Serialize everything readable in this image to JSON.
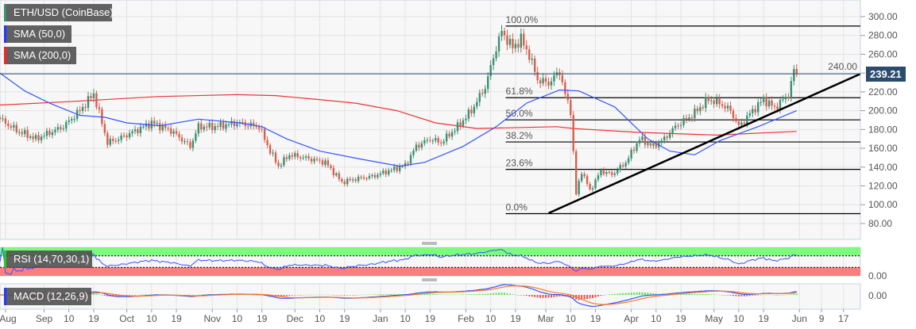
{
  "legend": {
    "instrument": {
      "label": "ETH/USD (CoinBase)",
      "color": "#3b8f72"
    },
    "sma50": {
      "label": "SMA (50,0)",
      "color": "#1f3cff"
    },
    "sma200": {
      "label": "SMA (200,0)",
      "color": "#ff2020"
    },
    "rsi": {
      "label": "RSI (14,70,30,1)",
      "color": "#22cc22"
    },
    "macd": {
      "label": "MACD (12,26,9)",
      "color": "#1f3cff"
    }
  },
  "last_price": "239.21",
  "colors": {
    "up": "#3b8f72",
    "down": "#d6604d",
    "sma50": "#3355ff",
    "sma200": "#ee3333",
    "price_line": "#2b4b6f",
    "rsi_overbought": "#7dfb7d",
    "rsi_oversold": "#fb7d7d"
  },
  "chart_data": {
    "type": "candlestick",
    "symbol": "ETH/USD",
    "ylim": [
      70,
      310
    ],
    "yticks": [
      "80.00",
      "100.00",
      "120.00",
      "140.00",
      "160.00",
      "180.00",
      "200.00",
      "220.00",
      "240.00",
      "260.00",
      "280.00",
      "300.00"
    ],
    "xticks": [
      {
        "label": "Aug",
        "date": "2019-08-18"
      },
      {
        "label": "Sep",
        "date": "2019-09-01"
      },
      {
        "label": "10",
        "date": "2019-09-10"
      },
      {
        "label": "19",
        "date": "2019-09-19"
      },
      {
        "label": "Oct",
        "date": "2019-10-01"
      },
      {
        "label": "10",
        "date": "2019-10-10"
      },
      {
        "label": "19",
        "date": "2019-10-19"
      },
      {
        "label": "Nov",
        "date": "2019-11-01"
      },
      {
        "label": "10",
        "date": "2019-11-10"
      },
      {
        "label": "19",
        "date": "2019-11-19"
      },
      {
        "label": "Dec",
        "date": "2019-12-01"
      },
      {
        "label": "10",
        "date": "2019-12-10"
      },
      {
        "label": "19",
        "date": "2019-12-19"
      },
      {
        "label": "Jan",
        "date": "2020-01-01"
      },
      {
        "label": "10",
        "date": "2020-01-10"
      },
      {
        "label": "19",
        "date": "2020-01-19"
      },
      {
        "label": "Feb",
        "date": "2020-02-01"
      },
      {
        "label": "10",
        "date": "2020-02-10"
      },
      {
        "label": "19",
        "date": "2020-02-19"
      },
      {
        "label": "Mar",
        "date": "2020-03-01"
      },
      {
        "label": "10",
        "date": "2020-03-10"
      },
      {
        "label": "19",
        "date": "2020-03-19"
      },
      {
        "label": "Apr",
        "date": "2020-04-01"
      },
      {
        "label": "10",
        "date": "2020-04-10"
      },
      {
        "label": "19",
        "date": "2020-04-19"
      },
      {
        "label": "May",
        "date": "2020-05-01"
      },
      {
        "label": "10",
        "date": "2020-05-10"
      },
      {
        "label": "19",
        "date": "2020-05-19"
      },
      {
        "label": "Jun",
        "date": "2020-06-01"
      },
      {
        "label": "9",
        "date": "2020-06-09"
      },
      {
        "label": "17",
        "date": "2020-06-17"
      }
    ],
    "closes": [
      [
        "2019-08-16",
        191
      ],
      [
        "2019-08-22",
        179
      ],
      [
        "2019-08-29",
        170
      ],
      [
        "2019-09-08",
        183
      ],
      [
        "2019-09-14",
        200
      ],
      [
        "2019-09-19",
        218
      ],
      [
        "2019-09-24",
        166
      ],
      [
        "2019-09-28",
        170
      ],
      [
        "2019-10-03",
        177
      ],
      [
        "2019-10-10",
        187
      ],
      [
        "2019-10-17",
        179
      ],
      [
        "2019-10-24",
        162
      ],
      [
        "2019-10-27",
        183
      ],
      [
        "2019-11-02",
        183
      ],
      [
        "2019-11-10",
        187
      ],
      [
        "2019-11-18",
        183
      ],
      [
        "2019-11-22",
        157
      ],
      [
        "2019-11-25",
        141
      ],
      [
        "2019-11-29",
        153
      ],
      [
        "2019-12-06",
        149
      ],
      [
        "2019-12-12",
        145
      ],
      [
        "2019-12-18",
        124
      ],
      [
        "2019-12-24",
        128
      ],
      [
        "2019-12-29",
        130
      ],
      [
        "2020-01-04",
        136
      ],
      [
        "2020-01-10",
        142
      ],
      [
        "2020-01-14",
        162
      ],
      [
        "2020-01-19",
        170
      ],
      [
        "2020-01-23",
        166
      ],
      [
        "2020-01-29",
        183
      ],
      [
        "2020-02-03",
        200
      ],
      [
        "2020-02-08",
        225
      ],
      [
        "2020-02-12",
        267
      ],
      [
        "2020-02-14",
        284
      ],
      [
        "2020-02-18",
        267
      ],
      [
        "2020-02-21",
        276
      ],
      [
        "2020-02-24",
        259
      ],
      [
        "2020-02-27",
        233
      ],
      [
        "2020-03-02",
        229
      ],
      [
        "2020-03-06",
        242
      ],
      [
        "2020-03-08",
        217
      ],
      [
        "2020-03-10",
        200
      ],
      [
        "2020-03-12",
        111
      ],
      [
        "2020-03-14",
        136
      ],
      [
        "2020-03-17",
        115
      ],
      [
        "2020-03-21",
        136
      ],
      [
        "2020-03-25",
        132
      ],
      [
        "2020-03-30",
        145
      ],
      [
        "2020-04-04",
        170
      ],
      [
        "2020-04-09",
        162
      ],
      [
        "2020-04-13",
        170
      ],
      [
        "2020-04-17",
        183
      ],
      [
        "2020-04-23",
        195
      ],
      [
        "2020-04-29",
        212
      ],
      [
        "2020-05-03",
        208
      ],
      [
        "2020-05-07",
        200
      ],
      [
        "2020-05-10",
        183
      ],
      [
        "2020-05-15",
        200
      ],
      [
        "2020-05-19",
        212
      ],
      [
        "2020-05-23",
        203
      ],
      [
        "2020-05-28",
        217
      ],
      [
        "2020-05-30",
        242
      ],
      [
        "2020-05-31",
        239.21
      ]
    ],
    "sma50": [
      [
        "2019-08-16",
        240
      ],
      [
        "2019-08-25",
        221
      ],
      [
        "2019-09-03",
        208
      ],
      [
        "2019-09-14",
        195
      ],
      [
        "2019-09-23",
        193
      ],
      [
        "2019-10-01",
        187
      ],
      [
        "2019-10-13",
        184
      ],
      [
        "2019-10-27",
        191
      ],
      [
        "2019-11-11",
        187
      ],
      [
        "2019-11-19",
        183
      ],
      [
        "2019-11-28",
        170
      ],
      [
        "2019-12-10",
        157
      ],
      [
        "2019-12-24",
        149
      ],
      [
        "2020-01-08",
        141
      ],
      [
        "2020-01-17",
        145
      ],
      [
        "2020-01-31",
        162
      ],
      [
        "2020-02-12",
        183
      ],
      [
        "2020-02-23",
        208
      ],
      [
        "2020-03-06",
        222
      ],
      [
        "2020-03-13",
        221
      ],
      [
        "2020-03-26",
        204
      ],
      [
        "2020-04-07",
        170
      ],
      [
        "2020-04-15",
        157
      ],
      [
        "2020-04-24",
        153
      ],
      [
        "2020-05-03",
        168
      ],
      [
        "2020-05-17",
        183
      ],
      [
        "2020-05-31",
        200
      ]
    ],
    "sma200": [
      [
        "2019-08-16",
        206
      ],
      [
        "2019-09-13",
        210
      ],
      [
        "2019-10-12",
        215
      ],
      [
        "2019-11-10",
        217
      ],
      [
        "2019-11-24",
        216
      ],
      [
        "2019-12-09",
        212
      ],
      [
        "2019-12-23",
        208
      ],
      [
        "2020-01-07",
        200
      ],
      [
        "2020-01-21",
        187
      ],
      [
        "2020-02-05",
        181
      ],
      [
        "2020-03-05",
        183
      ],
      [
        "2020-03-11",
        181
      ],
      [
        "2020-04-03",
        177
      ],
      [
        "2020-05-02",
        174
      ],
      [
        "2020-05-31",
        178
      ]
    ],
    "fibonacci": {
      "low": 90.5,
      "high": 290,
      "start_date": "2020-02-14",
      "levels": [
        {
          "label": "0.0%",
          "ratio": 0
        },
        {
          "label": "23.6%",
          "ratio": 0.236
        },
        {
          "label": "38.2%",
          "ratio": 0.382
        },
        {
          "label": "50.0%",
          "ratio": 0.5
        },
        {
          "label": "61.8%",
          "ratio": 0.618
        },
        {
          "label": "100.0%",
          "ratio": 1
        }
      ]
    },
    "trendline": [
      [
        "2020-03-02",
        91
      ],
      [
        "2020-06-23",
        239
      ]
    ],
    "rsi": {
      "period": 14,
      "overbought": 70,
      "oversold": 30,
      "axis_label": "0.00"
    },
    "macd": {
      "fast": 12,
      "slow": 26,
      "signal": 9,
      "axis_label": "0.00"
    }
  }
}
